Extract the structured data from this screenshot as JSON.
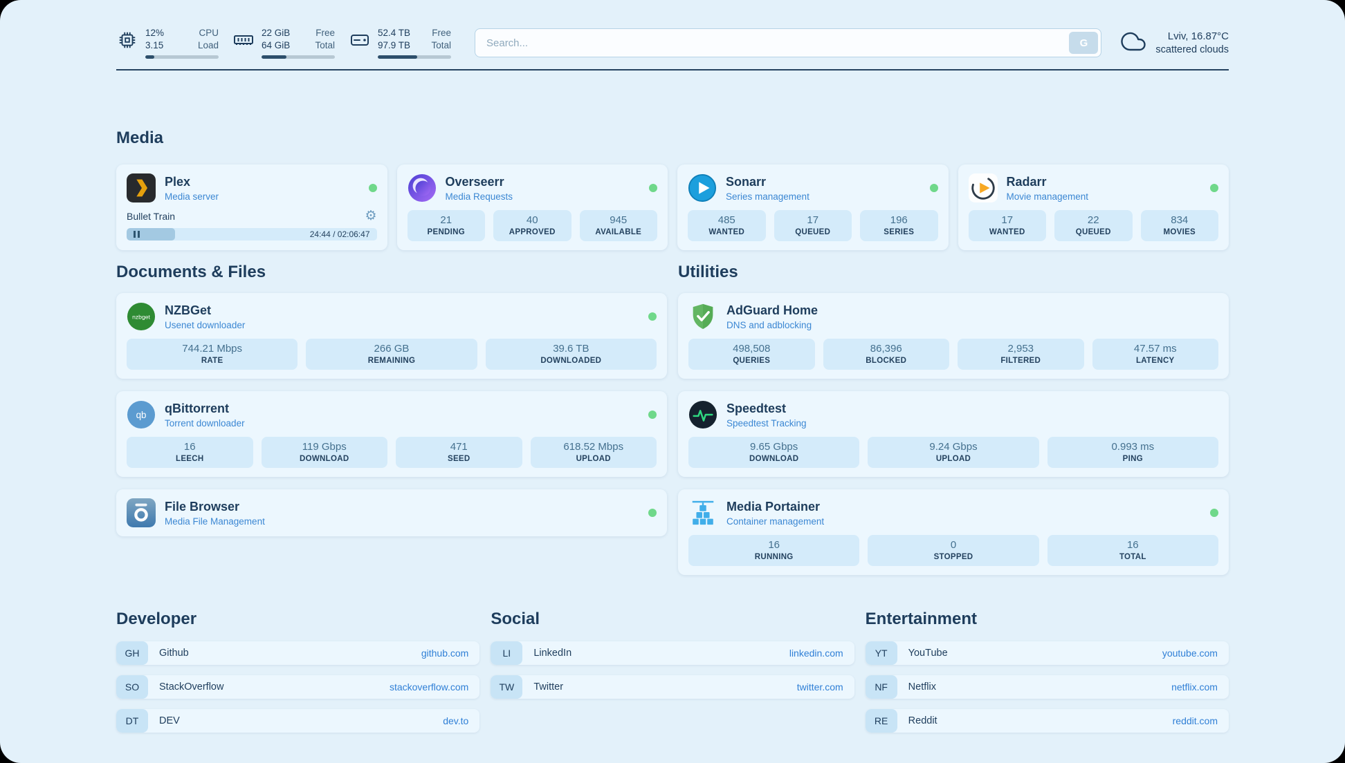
{
  "topbar": {
    "cpu": {
      "top_value": "12%",
      "bottom_value": "3.15",
      "top_label": "CPU",
      "bottom_label": "Load",
      "progress": 12
    },
    "ram": {
      "top_value": "22 GiB",
      "bottom_value": "64 GiB",
      "top_label": "Free",
      "bottom_label": "Total",
      "progress": 34
    },
    "disk": {
      "top_value": "52.4 TB",
      "bottom_value": "97.9 TB",
      "top_label": "Free",
      "bottom_label": "Total",
      "progress": 54
    },
    "search": {
      "placeholder": "Search...",
      "button_label": "G"
    },
    "weather": {
      "location": "Lviv, 16.87°C",
      "condition": "scattered clouds"
    }
  },
  "sections": {
    "media": "Media",
    "documents": "Documents & Files",
    "utilities": "Utilities",
    "developer": "Developer",
    "social": "Social",
    "entertainment": "Entertainment"
  },
  "apps": {
    "plex": {
      "name": "Plex",
      "subtitle": "Media server",
      "online": true,
      "now_playing": "Bullet Train",
      "time": "24:44 / 02:06:47",
      "progress": 19.5
    },
    "overseerr": {
      "name": "Overseerr",
      "subtitle": "Media Requests",
      "online": true,
      "stats": [
        {
          "value": "21",
          "label": "PENDING"
        },
        {
          "value": "40",
          "label": "APPROVED"
        },
        {
          "value": "945",
          "label": "AVAILABLE"
        }
      ]
    },
    "sonarr": {
      "name": "Sonarr",
      "subtitle": "Series management",
      "online": true,
      "stats": [
        {
          "value": "485",
          "label": "WANTED"
        },
        {
          "value": "17",
          "label": "QUEUED"
        },
        {
          "value": "196",
          "label": "SERIES"
        }
      ]
    },
    "radarr": {
      "name": "Radarr",
      "subtitle": "Movie management",
      "online": true,
      "stats": [
        {
          "value": "17",
          "label": "WANTED"
        },
        {
          "value": "22",
          "label": "QUEUED"
        },
        {
          "value": "834",
          "label": "MOVIES"
        }
      ]
    },
    "nzbget": {
      "name": "NZBGet",
      "subtitle": "Usenet downloader",
      "online": true,
      "stats": [
        {
          "value": "744.21 Mbps",
          "label": "RATE"
        },
        {
          "value": "266 GB",
          "label": "REMAINING"
        },
        {
          "value": "39.6 TB",
          "label": "DOWNLOADED"
        }
      ]
    },
    "qbittorrent": {
      "name": "qBittorrent",
      "subtitle": "Torrent downloader",
      "online": true,
      "stats": [
        {
          "value": "16",
          "label": "LEECH"
        },
        {
          "value": "119 Gbps",
          "label": "DOWNLOAD"
        },
        {
          "value": "471",
          "label": "SEED"
        },
        {
          "value": "618.52 Mbps",
          "label": "UPLOAD"
        }
      ]
    },
    "filebrowser": {
      "name": "File Browser",
      "subtitle": "Media File Management",
      "online": true
    },
    "adguard": {
      "name": "AdGuard Home",
      "subtitle": "DNS and adblocking",
      "online": false,
      "stats": [
        {
          "value": "498,508",
          "label": "QUERIES"
        },
        {
          "value": "86,396",
          "label": "BLOCKED"
        },
        {
          "value": "2,953",
          "label": "FILTERED"
        },
        {
          "value": "47.57 ms",
          "label": "LATENCY"
        }
      ]
    },
    "speedtest": {
      "name": "Speedtest",
      "subtitle": "Speedtest Tracking",
      "online": false,
      "stats": [
        {
          "value": "9.65 Gbps",
          "label": "DOWNLOAD"
        },
        {
          "value": "9.24 Gbps",
          "label": "UPLOAD"
        },
        {
          "value": "0.993 ms",
          "label": "PING"
        }
      ]
    },
    "portainer": {
      "name": "Media Portainer",
      "subtitle": "Container management",
      "online": true,
      "stats": [
        {
          "value": "16",
          "label": "RUNNING"
        },
        {
          "value": "0",
          "label": "STOPPED"
        },
        {
          "value": "16",
          "label": "TOTAL"
        }
      ]
    }
  },
  "bookmarks": {
    "developer": [
      {
        "abbr": "GH",
        "name": "Github",
        "url": "github.com"
      },
      {
        "abbr": "SO",
        "name": "StackOverflow",
        "url": "stackoverflow.com"
      },
      {
        "abbr": "DT",
        "name": "DEV",
        "url": "dev.to"
      }
    ],
    "social": [
      {
        "abbr": "LI",
        "name": "LinkedIn",
        "url": "linkedin.com"
      },
      {
        "abbr": "TW",
        "name": "Twitter",
        "url": "twitter.com"
      }
    ],
    "entertainment": [
      {
        "abbr": "YT",
        "name": "YouTube",
        "url": "youtube.com"
      },
      {
        "abbr": "NF",
        "name": "Netflix",
        "url": "netflix.com"
      },
      {
        "abbr": "RE",
        "name": "Reddit",
        "url": "reddit.com"
      }
    ]
  },
  "colors": {
    "navy": "#1e3d5c",
    "blue": "#2f7fd6",
    "green": "#6fd88a",
    "page_bg": "#e3f1fa",
    "card_bg": "#ecf7fe",
    "tile_bg": "#d4ebfa"
  }
}
